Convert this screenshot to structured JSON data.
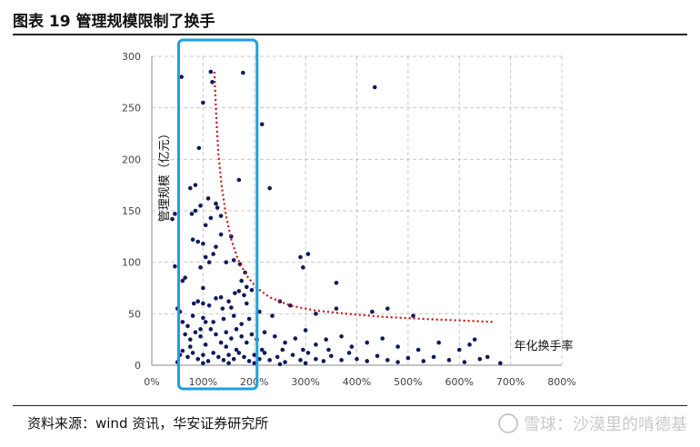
{
  "header": {
    "title": "图表 19 管理规模限制了换手"
  },
  "footer": {
    "source": "资料来源：wind 资讯，华安证券研究所",
    "watermark": "雪球：沙漠里的啃德基"
  },
  "chart_data": {
    "type": "scatter",
    "title": "",
    "xlabel": "年化换手率",
    "ylabel": "管理规模（亿元）",
    "xlim": [
      0,
      8
    ],
    "ylim": [
      0,
      300
    ],
    "x_ticks": [
      "0%",
      "100%",
      "200%",
      "300%",
      "400%",
      "500%",
      "600%",
      "700%",
      "800%"
    ],
    "y_ticks": [
      "0",
      "50",
      "100",
      "150",
      "200",
      "250",
      "300"
    ],
    "grid": true,
    "point_color": "#0d1a5c",
    "trend_color": "#cc1111",
    "highlight_color": "#1ea0e0",
    "highlight_range": {
      "x": [
        0.7,
        2.0
      ],
      "y": [
        0,
        300
      ]
    },
    "trend_line": [
      [
        1.22,
        285
      ],
      [
        1.26,
        240
      ],
      [
        1.3,
        205
      ],
      [
        1.36,
        175
      ],
      [
        1.45,
        145
      ],
      [
        1.55,
        122
      ],
      [
        1.68,
        103
      ],
      [
        1.85,
        87
      ],
      [
        2.05,
        75
      ],
      [
        2.3,
        66
      ],
      [
        2.7,
        58
      ],
      [
        3.2,
        53
      ],
      [
        3.8,
        50
      ],
      [
        4.5,
        47
      ],
      [
        5.3,
        45
      ],
      [
        6.0,
        43.5
      ],
      [
        6.7,
        42
      ]
    ],
    "points": [
      [
        0.58,
        280
      ],
      [
        1.15,
        285
      ],
      [
        1.18,
        275
      ],
      [
        1.78,
        284
      ],
      [
        2.15,
        234
      ],
      [
        1.0,
        255
      ],
      [
        0.92,
        211
      ],
      [
        2.3,
        172
      ],
      [
        1.7,
        180
      ],
      [
        4.35,
        270
      ],
      [
        0.75,
        172
      ],
      [
        0.85,
        175
      ],
      [
        1.25,
        157
      ],
      [
        1.28,
        153
      ],
      [
        1.1,
        162
      ],
      [
        0.4,
        142
      ],
      [
        0.45,
        147
      ],
      [
        0.78,
        147
      ],
      [
        0.85,
        150
      ],
      [
        0.95,
        155
      ],
      [
        1.05,
        136
      ],
      [
        1.15,
        143
      ],
      [
        1.35,
        145
      ],
      [
        1.55,
        125
      ],
      [
        0.9,
        120
      ],
      [
        0.8,
        122
      ],
      [
        1.0,
        118
      ],
      [
        1.25,
        115
      ],
      [
        1.35,
        127
      ],
      [
        1.05,
        105
      ],
      [
        1.12,
        100
      ],
      [
        1.2,
        108
      ],
      [
        1.45,
        100
      ],
      [
        1.6,
        102
      ],
      [
        1.72,
        98
      ],
      [
        1.82,
        90
      ],
      [
        0.95,
        95
      ],
      [
        0.45,
        96
      ],
      [
        0.6,
        82
      ],
      [
        0.65,
        85
      ],
      [
        1.75,
        82
      ],
      [
        1.85,
        76
      ],
      [
        1.95,
        73
      ],
      [
        3.05,
        108
      ],
      [
        2.9,
        105
      ],
      [
        2.95,
        95
      ],
      [
        3.6,
        80
      ],
      [
        2.5,
        62
      ],
      [
        1.0,
        75
      ],
      [
        1.35,
        66
      ],
      [
        1.5,
        62
      ],
      [
        1.62,
        70
      ],
      [
        1.7,
        72
      ],
      [
        1.8,
        68
      ],
      [
        0.5,
        55
      ],
      [
        0.55,
        52
      ],
      [
        0.82,
        60
      ],
      [
        0.9,
        62
      ],
      [
        1.0,
        60
      ],
      [
        1.12,
        58
      ],
      [
        1.25,
        65
      ],
      [
        1.38,
        55
      ],
      [
        1.55,
        56
      ],
      [
        1.85,
        60
      ],
      [
        0.6,
        42
      ],
      [
        0.7,
        38
      ],
      [
        0.8,
        48
      ],
      [
        1.0,
        46
      ],
      [
        1.2,
        42
      ],
      [
        1.4,
        45
      ],
      [
        1.6,
        48
      ],
      [
        1.75,
        40
      ],
      [
        1.9,
        45
      ],
      [
        2.1,
        52
      ],
      [
        2.35,
        48
      ],
      [
        2.7,
        58
      ],
      [
        3.2,
        50
      ],
      [
        3.6,
        55
      ],
      [
        4.6,
        55
      ],
      [
        4.3,
        52
      ],
      [
        5.1,
        48
      ],
      [
        0.65,
        30
      ],
      [
        0.75,
        25
      ],
      [
        0.85,
        32
      ],
      [
        0.95,
        28
      ],
      [
        1.05,
        20
      ],
      [
        1.15,
        35
      ],
      [
        1.25,
        30
      ],
      [
        1.35,
        22
      ],
      [
        1.45,
        32
      ],
      [
        1.55,
        26
      ],
      [
        1.65,
        35
      ],
      [
        1.75,
        28
      ],
      [
        1.85,
        22
      ],
      [
        1.95,
        30
      ],
      [
        2.05,
        25
      ],
      [
        2.2,
        32
      ],
      [
        2.4,
        28
      ],
      [
        2.6,
        22
      ],
      [
        2.8,
        26
      ],
      [
        3.0,
        34
      ],
      [
        3.2,
        20
      ],
      [
        3.4,
        25
      ],
      [
        3.7,
        28
      ],
      [
        3.9,
        18
      ],
      [
        4.2,
        22
      ],
      [
        4.5,
        26
      ],
      [
        4.8,
        18
      ],
      [
        5.2,
        15
      ],
      [
        5.6,
        22
      ],
      [
        6.0,
        15
      ],
      [
        6.2,
        20
      ],
      [
        0.55,
        10
      ],
      [
        0.6,
        14
      ],
      [
        0.7,
        8
      ],
      [
        0.8,
        12
      ],
      [
        0.9,
        6
      ],
      [
        1.0,
        10
      ],
      [
        1.1,
        4
      ],
      [
        1.2,
        12
      ],
      [
        1.3,
        8
      ],
      [
        1.4,
        5
      ],
      [
        1.5,
        10
      ],
      [
        1.6,
        6
      ],
      [
        1.7,
        12
      ],
      [
        1.8,
        8
      ],
      [
        1.9,
        4
      ],
      [
        2.0,
        10
      ],
      [
        2.1,
        6
      ],
      [
        2.2,
        12
      ],
      [
        2.3,
        5
      ],
      [
        2.45,
        8
      ],
      [
        2.6,
        3
      ],
      [
        2.75,
        10
      ],
      [
        2.9,
        5
      ],
      [
        3.05,
        12
      ],
      [
        3.2,
        6
      ],
      [
        3.35,
        4
      ],
      [
        3.5,
        9
      ],
      [
        3.7,
        5
      ],
      [
        3.85,
        12
      ],
      [
        4.0,
        6
      ],
      [
        4.2,
        4
      ],
      [
        4.4,
        9
      ],
      [
        4.6,
        5
      ],
      [
        4.8,
        3
      ],
      [
        5.0,
        7
      ],
      [
        5.3,
        4
      ],
      [
        5.5,
        8
      ],
      [
        5.8,
        5
      ],
      [
        6.1,
        3
      ],
      [
        6.4,
        6
      ],
      [
        6.8,
        2
      ],
      [
        0.5,
        3
      ],
      [
        1.0,
        2
      ],
      [
        1.5,
        2
      ],
      [
        2.0,
        2
      ],
      [
        2.5,
        1
      ],
      [
        3.0,
        2
      ],
      [
        0.95,
        35
      ],
      [
        1.05,
        42
      ],
      [
        1.65,
        15
      ],
      [
        1.45,
        18
      ],
      [
        2.15,
        15
      ],
      [
        2.55,
        15
      ],
      [
        2.95,
        15
      ],
      [
        3.45,
        15
      ],
      [
        0.75,
        18
      ],
      [
        6.3,
        25
      ],
      [
        6.55,
        8
      ]
    ]
  }
}
